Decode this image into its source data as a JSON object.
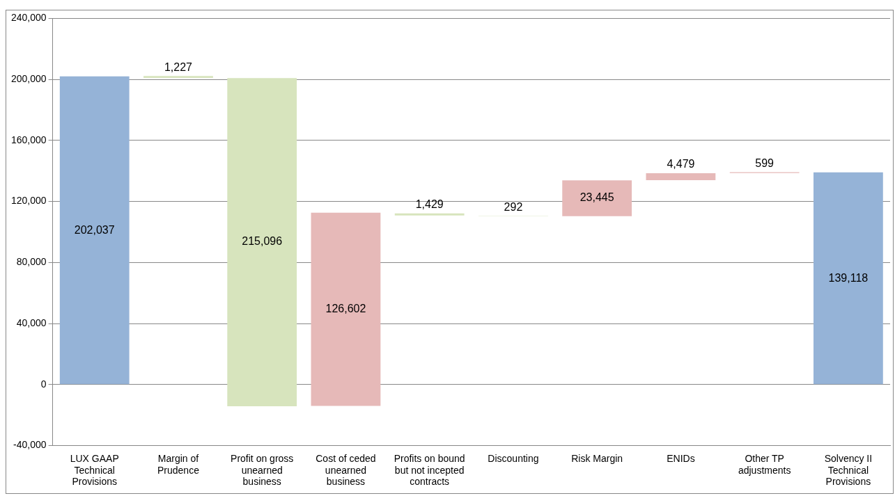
{
  "chart_data": {
    "type": "bar",
    "categories": [
      "LUX GAAP Technical Provisions",
      "Margin of Prudence",
      "Profit on gross unearned business",
      "Cost of ceded unearned business",
      "Profits on bound but not incepted contracts",
      "Discounting",
      "Risk Margin",
      "ENIDs",
      "Other TP adjustments",
      "Solvency II Technical Provisions"
    ],
    "values": [
      202037,
      1227,
      -215096,
      126602,
      -1429,
      -292,
      23445,
      4479,
      599,
      139118
    ],
    "base": [
      0,
      201000,
      200900,
      -14000,
      112200,
      110600,
      110400,
      134000,
      138600,
      0
    ],
    "colors": [
      "#95b3d7",
      "#d7e4bd",
      "#d7e4bd",
      "#e6b9b8",
      "#d7e4bd",
      "#ebf1de",
      "#e6b9b8",
      "#e6b9b8",
      "#e6b9b8",
      "#95b3d7"
    ],
    "value_labels": [
      "202,037",
      "1,227",
      "215,096",
      "126,602",
      "1,429",
      "292",
      "23,445",
      "4,479",
      "599",
      "139,118"
    ],
    "ylim": [
      -40000,
      240000
    ],
    "yticks": [
      {
        "value": -40000,
        "label": "-40,000"
      },
      0,
      {
        "value": 40000,
        "label": "40,000"
      },
      {
        "value": 80000,
        "label": "80,000"
      },
      {
        "value": 120000,
        "label": "120,000"
      },
      {
        "value": 160000,
        "label": "160,000"
      },
      {
        "value": 200000,
        "label": "200,000"
      },
      {
        "value": 240000,
        "label": "240,000"
      }
    ],
    "grid": "y",
    "legend": false
  }
}
